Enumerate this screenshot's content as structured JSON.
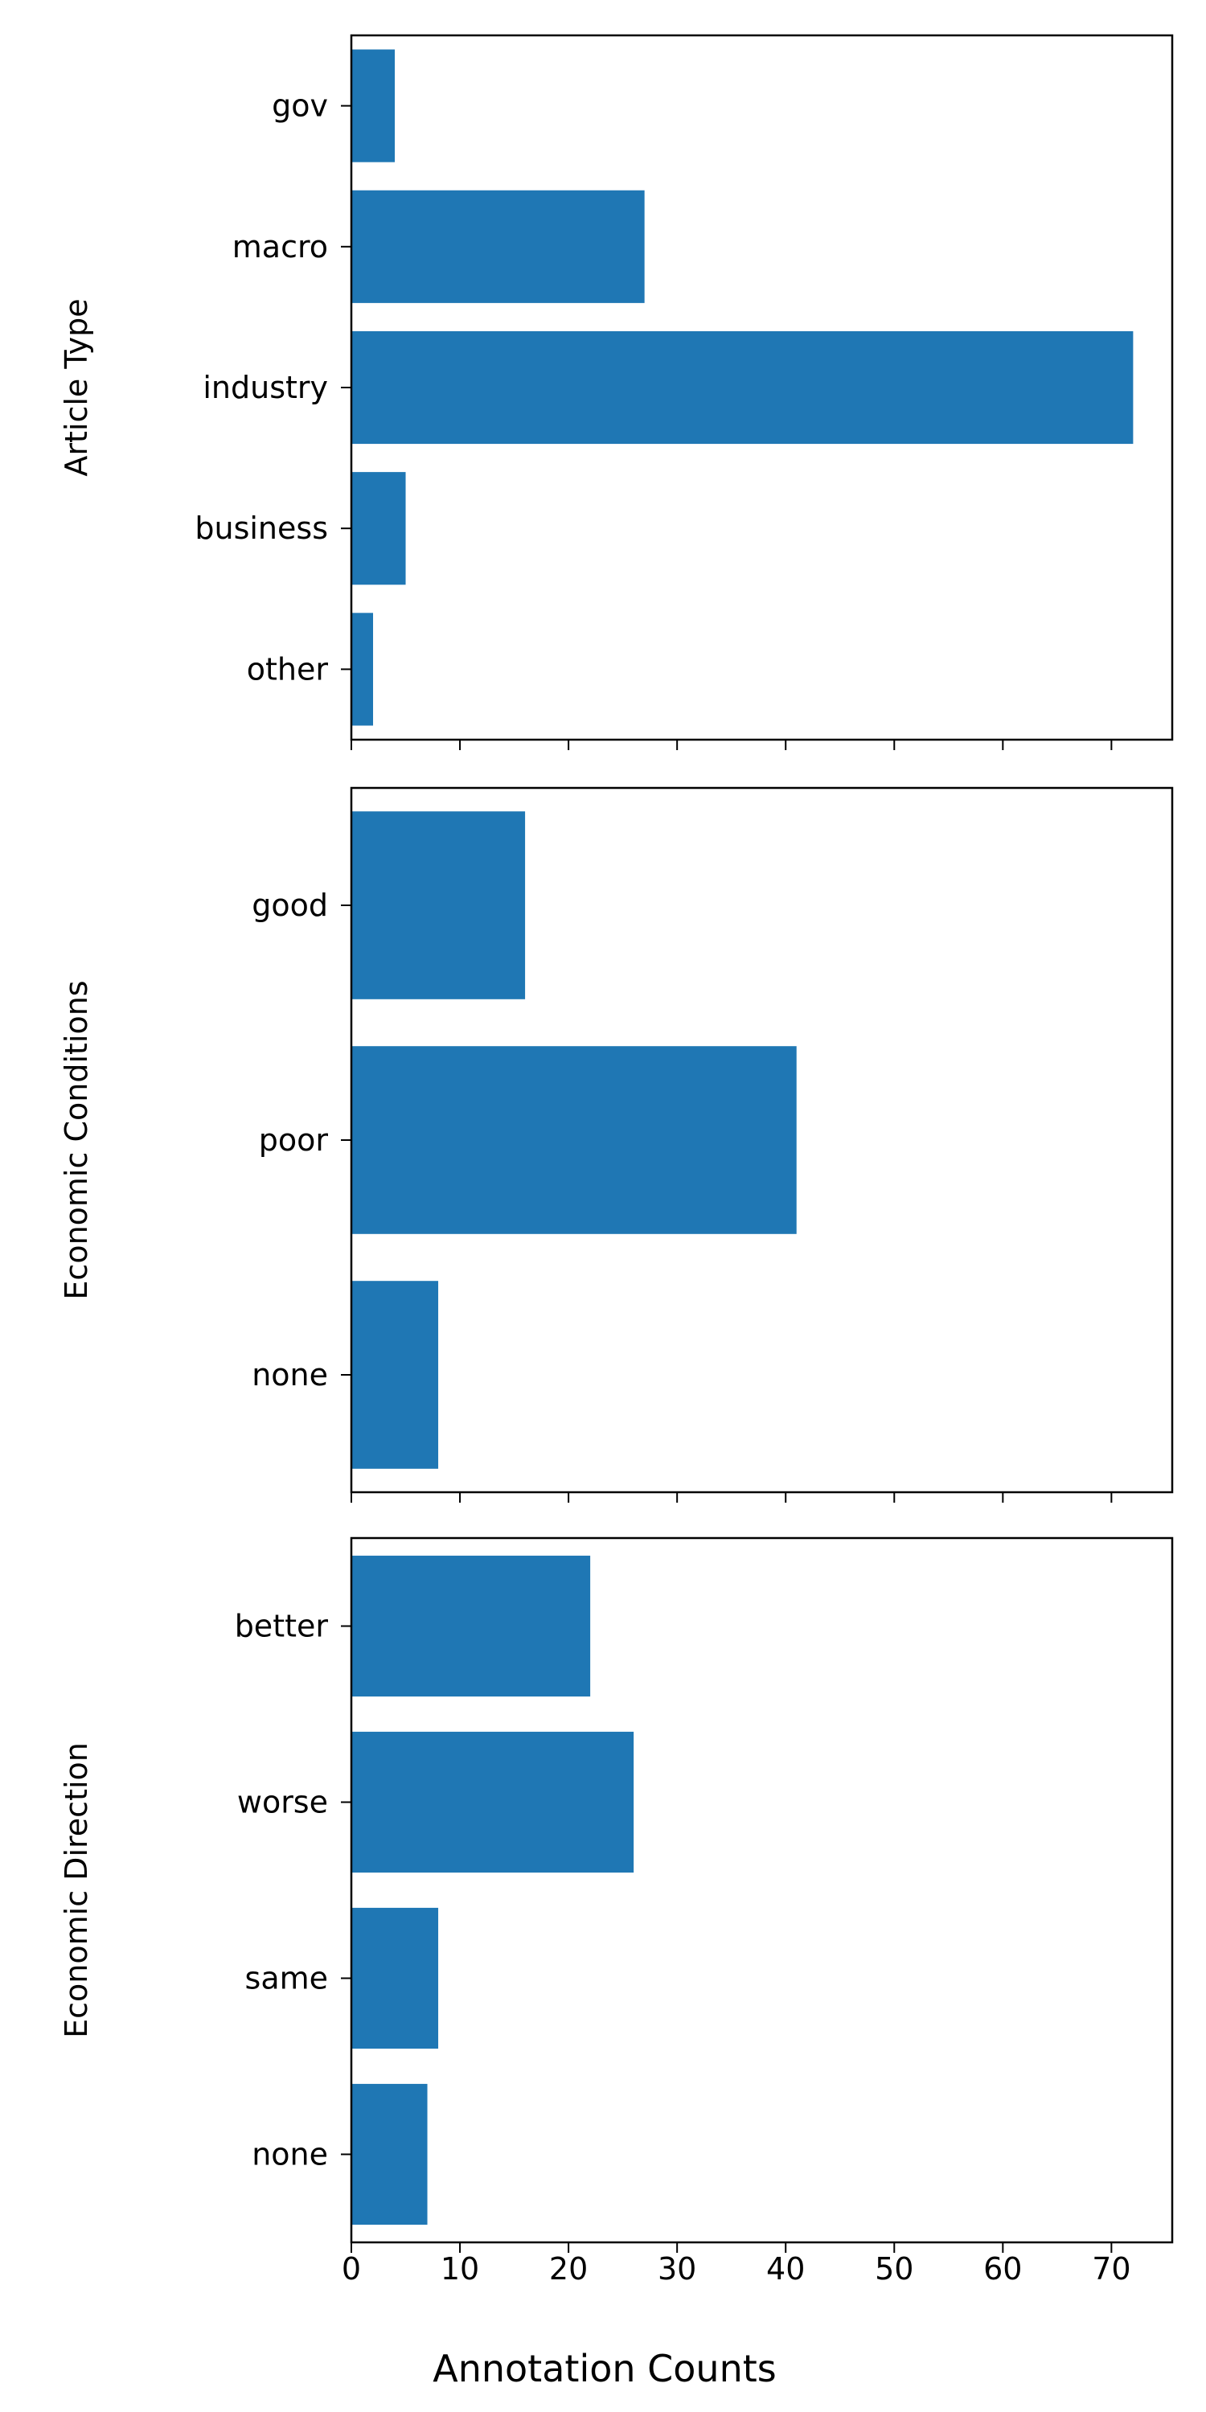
{
  "chart_data": [
    {
      "type": "bar",
      "orientation": "horizontal",
      "categories": [
        "gov",
        "macro",
        "industry",
        "business",
        "other"
      ],
      "values": [
        4,
        27,
        72,
        5,
        2
      ],
      "ylabel": "Article Type",
      "xlim": [
        0,
        75.6
      ],
      "color": "#1f77b4",
      "grid": false
    },
    {
      "type": "bar",
      "orientation": "horizontal",
      "categories": [
        "good",
        "poor",
        "none"
      ],
      "values": [
        16,
        41,
        8
      ],
      "ylabel": "Economic Conditions",
      "xlim": [
        0,
        75.6
      ],
      "color": "#1f77b4",
      "grid": false
    },
    {
      "type": "bar",
      "orientation": "horizontal",
      "categories": [
        "better",
        "worse",
        "same",
        "none"
      ],
      "values": [
        22,
        26,
        8,
        7
      ],
      "ylabel": "Economic Direction",
      "xlim": [
        0,
        75.6
      ],
      "color": "#1f77b4",
      "grid": false
    }
  ],
  "shared_x_axis": {
    "label": "Annotation Counts",
    "ticks": [
      0,
      10,
      20,
      30,
      40,
      50,
      60,
      70
    ]
  }
}
